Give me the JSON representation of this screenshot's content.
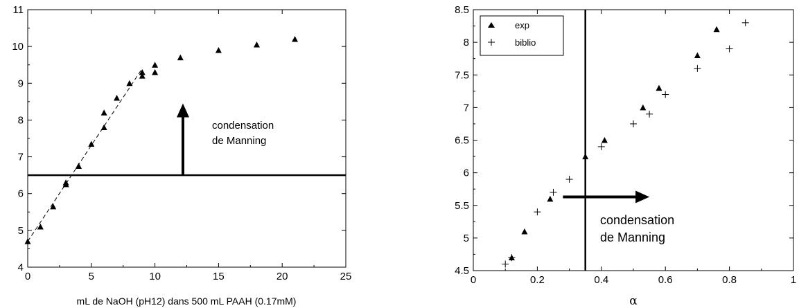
{
  "chart_data": [
    {
      "type": "scatter",
      "title": "",
      "xlabel": "mL de NaOH (pH12) dans 500 mL PAAH (0.17mM)",
      "ylabel": "",
      "xlim": [
        0,
        25
      ],
      "ylim": [
        4,
        11
      ],
      "xticks": [
        "0",
        "5",
        "10",
        "15",
        "20",
        "25"
      ],
      "yticks": [
        "4",
        "5",
        "6",
        "7",
        "8",
        "9",
        "10",
        "11"
      ],
      "series": [
        {
          "marker": "triangle",
          "x": [
            0,
            1,
            2,
            3,
            3,
            4,
            4,
            5,
            6,
            6,
            7,
            8,
            9,
            9,
            10,
            10,
            12,
            15,
            18,
            21
          ],
          "y": [
            4.7,
            5.1,
            5.65,
            6.25,
            6.3,
            6.75,
            6.75,
            7.35,
            7.8,
            8.2,
            8.6,
            9.0,
            9.2,
            9.3,
            9.3,
            9.5,
            9.7,
            9.9,
            10.05,
            10.2
          ]
        }
      ],
      "fit_line": {
        "style": "dashed",
        "x": [
          0,
          9
        ],
        "y": [
          4.7,
          9.4
        ]
      },
      "hline": 6.5,
      "arrow": {
        "x": 12.2,
        "y_from": 6.5,
        "y_to": 8.45
      },
      "annotation": [
        "condensation",
        "de Manning"
      ]
    },
    {
      "type": "scatter",
      "title": "",
      "xlabel": "α",
      "ylabel": "",
      "xlim": [
        0,
        1
      ],
      "ylim": [
        4.5,
        8.5
      ],
      "xticks": [
        "0",
        "0.2",
        "0.4",
        "0.6",
        "0.8",
        "1"
      ],
      "yticks": [
        "4.5",
        "5",
        "5.5",
        "6",
        "6.5",
        "7",
        "7.5",
        "8",
        "8.5"
      ],
      "legend": "top-left",
      "series": [
        {
          "name": "exp",
          "marker": "triangle",
          "x": [
            0.12,
            0.16,
            0.24,
            0.35,
            0.41,
            0.53,
            0.58,
            0.7,
            0.76
          ],
          "y": [
            4.7,
            5.1,
            5.6,
            6.25,
            6.5,
            7.0,
            7.3,
            7.8,
            8.2
          ]
        },
        {
          "name": "biblio",
          "marker": "plus",
          "x": [
            0.1,
            0.12,
            0.2,
            0.25,
            0.3,
            0.4,
            0.5,
            0.55,
            0.6,
            0.7,
            0.8,
            0.85
          ],
          "y": [
            4.6,
            4.7,
            5.4,
            5.7,
            5.9,
            6.4,
            6.75,
            6.9,
            7.2,
            7.6,
            7.9,
            8.3
          ]
        }
      ],
      "vline": 0.35,
      "arrow": {
        "y": 5.63,
        "x_from": 0.28,
        "x_to": 0.55
      },
      "annotation": [
        "condensation",
        "de Manning"
      ]
    }
  ]
}
